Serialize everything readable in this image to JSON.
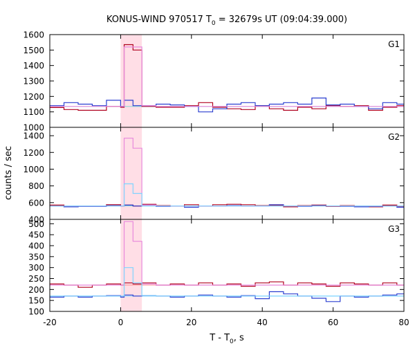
{
  "chart_data": {
    "type": "line",
    "title_main": "KONUS-WIND 970517 T",
    "title_sub": "0",
    "title_rest": " = 32679s UT (09:04:39.000)",
    "xlabel_main": "T - T",
    "xlabel_sub": "0",
    "xlabel_rest": ", s",
    "ylabel": "counts / sec",
    "xlim": [
      -20,
      80
    ],
    "xticks": [
      -20,
      0,
      20,
      40,
      60,
      80
    ],
    "xtick_labels": [
      "-20",
      "0",
      "20",
      "40",
      "60",
      "80"
    ],
    "grid": false,
    "highlight": {
      "x0": 0,
      "x1": 6,
      "color": "#ffd0dc"
    },
    "bins": [
      -20,
      -16,
      -12,
      -8,
      -4,
      0,
      1,
      3.5,
      6,
      10,
      14,
      18,
      22,
      26,
      30,
      34,
      38,
      42,
      46,
      50,
      54,
      58,
      62,
      66,
      70,
      74,
      78,
      82
    ],
    "panels": [
      {
        "label": "G1",
        "ylim": [
          1000,
          1600
        ],
        "yticks": [
          1000,
          1100,
          1200,
          1300,
          1400,
          1500,
          1600
        ],
        "ytick_labels": [
          "1000",
          "1100",
          "1200",
          "1300",
          "1400",
          "1500",
          "1600"
        ],
        "fit": {
          "value": 1135,
          "color": "#7fd4d8"
        },
        "series": [
          {
            "color": "#b0001e",
            "values": [
              1128,
              1115,
              1110,
              1110,
              1135,
              1130,
              1535,
              1500,
              1135,
              1130,
              1130,
              1140,
              1160,
              1130,
              1120,
              1115,
              1140,
              1120,
              1110,
              1130,
              1120,
              1140,
              1135,
              1140,
              1110,
              1130,
              1140
            ]
          },
          {
            "color": "#2b3fd0",
            "values": [
              1140,
              1160,
              1150,
              1140,
              1175,
              1135,
              1175,
              1140,
              1140,
              1150,
              1145,
              1135,
              1100,
              1120,
              1150,
              1160,
              1140,
              1150,
              1160,
              1150,
              1190,
              1145,
              1150,
              1135,
              1120,
              1160,
              1150
            ]
          },
          {
            "color": "#e888dc",
            "values": [
              1135,
              1135,
              1135,
              1135,
              1135,
              1135,
              1520,
              1520,
              1140,
              1135,
              1135,
              1135,
              1135,
              1135,
              1135,
              1135,
              1135,
              1135,
              1135,
              1135,
              1135,
              1135,
              1135,
              1135,
              1135,
              1135,
              1135
            ]
          }
        ]
      },
      {
        "label": "G2",
        "ylim": [
          400,
          1500
        ],
        "yticks": [
          400,
          600,
          800,
          1000,
          1200,
          1400
        ],
        "ytick_labels": [
          "400",
          "600",
          "800",
          "1000",
          "1200",
          "1400"
        ],
        "fit": {
          "value": 560,
          "color": "#7fd4d8"
        },
        "series": [
          {
            "color": "#b0001e",
            "values": [
              570,
              550,
              560,
              560,
              575,
              560,
              570,
              560,
              580,
              565,
              560,
              575,
              560,
              575,
              580,
              575,
              565,
              570,
              550,
              565,
              570,
              555,
              565,
              560,
              550,
              570,
              555
            ]
          },
          {
            "color": "#2b3fd0",
            "values": [
              560,
              550,
              555,
              555,
              565,
              560,
              570,
              560,
              570,
              555,
              560,
              545,
              560,
              560,
              565,
              560,
              560,
              575,
              560,
              555,
              565,
              560,
              555,
              550,
              555,
              560,
              545
            ]
          },
          {
            "color": "#e888dc",
            "values": [
              560,
              560,
              560,
              560,
              560,
              560,
              1370,
              1250,
              570,
              560,
              560,
              560,
              560,
              560,
              560,
              560,
              560,
              560,
              560,
              560,
              560,
              560,
              560,
              560,
              560,
              560,
              560
            ]
          },
          {
            "color": "#7fd4ff",
            "values": [
              560,
              560,
              560,
              560,
              560,
              560,
              825,
              710,
              560,
              560,
              560,
              560,
              560,
              560,
              560,
              560,
              560,
              560,
              560,
              560,
              560,
              560,
              560,
              560,
              560,
              560,
              560
            ]
          }
        ]
      },
      {
        "label": "G3",
        "ylim": [
          100,
          520
        ],
        "yticks": [
          100,
          150,
          200,
          250,
          300,
          350,
          400,
          450,
          500
        ],
        "ytick_labels": [
          "100",
          "150",
          "200",
          "250",
          "300",
          "350",
          "400",
          "450",
          "500"
        ],
        "fit": {
          "value": 220,
          "color": "#ff9090"
        },
        "fit2": {
          "value": 170,
          "color": "#7fd4ff"
        },
        "series": [
          {
            "color": "#b0001e",
            "values": [
              225,
              220,
              210,
              220,
              225,
              220,
              230,
              225,
              230,
              220,
              225,
              220,
              230,
              220,
              225,
              215,
              230,
              235,
              220,
              230,
              225,
              215,
              230,
              225,
              220,
              230,
              220
            ]
          },
          {
            "color": "#2b3fd0",
            "values": [
              165,
              170,
              165,
              170,
              172,
              165,
              175,
              170,
              172,
              170,
              165,
              170,
              175,
              170,
              165,
              172,
              158,
              190,
              180,
              170,
              160,
              145,
              170,
              165,
              170,
              175,
              180
            ]
          },
          {
            "color": "#e888dc",
            "values": [
              220,
              220,
              220,
              220,
              220,
              220,
              510,
              420,
              225,
              220,
              220,
              220,
              220,
              220,
              220,
              220,
              220,
              220,
              220,
              220,
              220,
              220,
              220,
              220,
              220,
              220,
              220
            ]
          },
          {
            "color": "#7fd4ff",
            "values": [
              170,
              170,
              170,
              170,
              170,
              170,
              300,
              230,
              172,
              170,
              170,
              170,
              170,
              170,
              170,
              170,
              170,
              170,
              170,
              170,
              170,
              170,
              170,
              170,
              170,
              170,
              170
            ]
          }
        ]
      }
    ]
  }
}
